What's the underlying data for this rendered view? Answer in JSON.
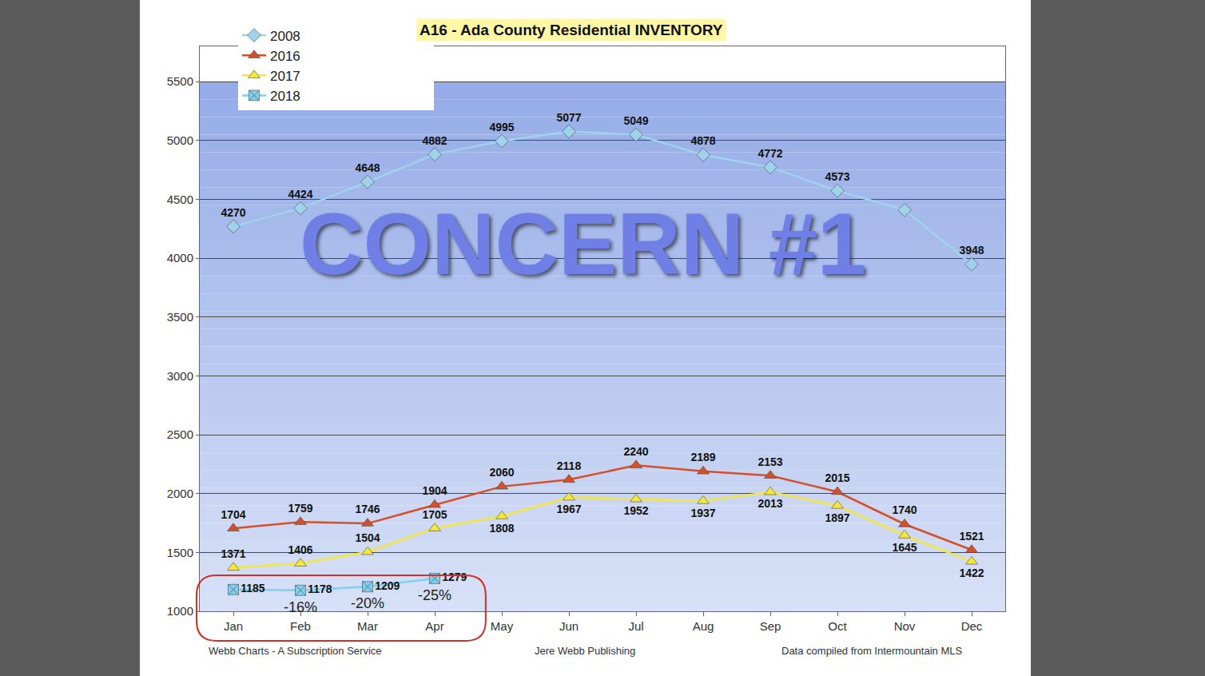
{
  "chart_data": {
    "type": "line",
    "title": "A16 - Ada County Residential INVENTORY",
    "categories": [
      "Jan",
      "Feb",
      "Mar",
      "Apr",
      "May",
      "Jun",
      "Jul",
      "Aug",
      "Sep",
      "Oct",
      "Nov",
      "Dec"
    ],
    "series": [
      {
        "name": "2008",
        "color": "#9fd3ec",
        "marker": "diamond",
        "line_style": "solid",
        "values": [
          4270,
          4424,
          4648,
          4882,
          4995,
          5077,
          5049,
          4878,
          4772,
          4573,
          4410,
          3948
        ],
        "value_labels": [
          "4270",
          "4424",
          "4648",
          "4882",
          "4995",
          "5077",
          "5049",
          "4878",
          "4772",
          "4573",
          null,
          "3948"
        ]
      },
      {
        "name": "2016",
        "color": "#d4502b",
        "marker": "triangle-up",
        "line_style": "solid",
        "values": [
          1704,
          1759,
          1746,
          1904,
          2060,
          2118,
          2240,
          2189,
          2153,
          2015,
          1740,
          1521
        ]
      },
      {
        "name": "2017",
        "color": "#f5e83a",
        "marker": "triangle-up",
        "line_style": "solid",
        "values": [
          1371,
          1406,
          1504,
          1705,
          1808,
          1967,
          1952,
          1937,
          2013,
          1897,
          1645,
          1422
        ]
      },
      {
        "name": "2018",
        "color": "#7fd0ee",
        "marker": "square-x",
        "line_style": "solid",
        "values": [
          1185,
          1178,
          1209,
          1279,
          null,
          null,
          null,
          null,
          null,
          null,
          null,
          null
        ]
      }
    ],
    "ylim": [
      1000,
      5800
    ],
    "yticks": [
      1000,
      1500,
      2000,
      2500,
      3000,
      3500,
      4000,
      4500,
      5000,
      5500
    ],
    "grid": true,
    "legend": "top",
    "data_labels": true,
    "annotations": [
      {
        "text": "CONCERN #1"
      },
      {
        "text": "-16%",
        "x": "Feb"
      },
      {
        "text": "-20%",
        "x": "Mar"
      },
      {
        "text": "-25%",
        "x": "Apr"
      }
    ],
    "footer": [
      "Webb Charts - A Subscription Service",
      "Jere Webb Publishing",
      "Data compiled from Intermountain MLS"
    ]
  }
}
